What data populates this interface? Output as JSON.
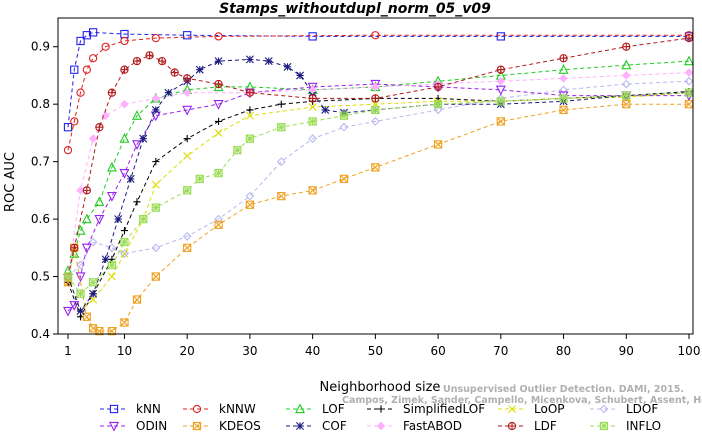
{
  "chart_data": {
    "type": "line",
    "title": "Stamps_withoutdupl_norm_05_v09",
    "xlabel": "Neighborhood size",
    "ylabel": "ROC AUC",
    "xlim": [
      1,
      100
    ],
    "ylim": [
      0.4,
      0.95
    ],
    "xticks": [
      1,
      10,
      20,
      30,
      40,
      50,
      60,
      70,
      80,
      90,
      100
    ],
    "yticks": [
      0.4,
      0.5,
      0.6,
      0.7,
      0.8,
      0.9
    ],
    "ytick_labels": [
      "0.4",
      "0.5",
      "0.6",
      "0.7",
      "0.8",
      "0.9"
    ],
    "legend_placement": "bottom",
    "watermark": [
      "Unsupervised Outlier Detection. DAMI, 2015.",
      "Campos, Zimek, Sander, Campello, Micenkova, Schubert, Assent, Houle"
    ],
    "series": [
      {
        "name": "kNN",
        "color": "#2222ee",
        "marker": "square",
        "points": [
          [
            1,
            0.76
          ],
          [
            2,
            0.86
          ],
          [
            3,
            0.91
          ],
          [
            4,
            0.92
          ],
          [
            5,
            0.925
          ],
          [
            10,
            0.922
          ],
          [
            20,
            0.92
          ],
          [
            40,
            0.918
          ],
          [
            70,
            0.918
          ],
          [
            100,
            0.918
          ]
        ]
      },
      {
        "name": "kNNW",
        "color": "#e02020",
        "marker": "circle",
        "points": [
          [
            1,
            0.72
          ],
          [
            2,
            0.77
          ],
          [
            3,
            0.82
          ],
          [
            4,
            0.86
          ],
          [
            5,
            0.88
          ],
          [
            7,
            0.9
          ],
          [
            10,
            0.91
          ],
          [
            15,
            0.915
          ],
          [
            25,
            0.918
          ],
          [
            50,
            0.92
          ],
          [
            100,
            0.92
          ]
        ]
      },
      {
        "name": "LOF",
        "color": "#22cc22",
        "marker": "triangle-up",
        "points": [
          [
            1,
            0.51
          ],
          [
            2,
            0.54
          ],
          [
            3,
            0.58
          ],
          [
            4,
            0.6
          ],
          [
            6,
            0.63
          ],
          [
            8,
            0.69
          ],
          [
            10,
            0.74
          ],
          [
            12,
            0.78
          ],
          [
            15,
            0.81
          ],
          [
            20,
            0.825
          ],
          [
            25,
            0.83
          ],
          [
            30,
            0.83
          ],
          [
            40,
            0.825
          ],
          [
            50,
            0.83
          ],
          [
            60,
            0.84
          ],
          [
            70,
            0.85
          ],
          [
            80,
            0.86
          ],
          [
            90,
            0.868
          ],
          [
            100,
            0.875
          ]
        ]
      },
      {
        "name": "SimplifiedLOF",
        "color": "#000000",
        "marker": "plus",
        "points": [
          [
            1,
            0.49
          ],
          [
            3,
            0.43
          ],
          [
            5,
            0.47
          ],
          [
            8,
            0.53
          ],
          [
            10,
            0.58
          ],
          [
            12,
            0.63
          ],
          [
            15,
            0.7
          ],
          [
            20,
            0.74
          ],
          [
            25,
            0.77
          ],
          [
            30,
            0.79
          ],
          [
            35,
            0.8
          ],
          [
            40,
            0.805
          ],
          [
            50,
            0.81
          ],
          [
            60,
            0.81
          ],
          [
            70,
            0.805
          ],
          [
            80,
            0.81
          ],
          [
            90,
            0.815
          ],
          [
            100,
            0.822
          ]
        ]
      },
      {
        "name": "LoOP",
        "color": "#dddd00",
        "marker": "x",
        "points": [
          [
            1,
            0.5
          ],
          [
            3,
            0.44
          ],
          [
            5,
            0.46
          ],
          [
            8,
            0.5
          ],
          [
            10,
            0.54
          ],
          [
            13,
            0.6
          ],
          [
            15,
            0.66
          ],
          [
            20,
            0.71
          ],
          [
            25,
            0.75
          ],
          [
            30,
            0.78
          ],
          [
            40,
            0.795
          ],
          [
            50,
            0.8
          ],
          [
            60,
            0.805
          ],
          [
            70,
            0.805
          ],
          [
            80,
            0.81
          ],
          [
            90,
            0.812
          ],
          [
            100,
            0.82
          ]
        ]
      },
      {
        "name": "LDOF",
        "color": "#b8b8f0",
        "marker": "diamond",
        "points": [
          [
            1,
            0.5
          ],
          [
            3,
            0.52
          ],
          [
            5,
            0.56
          ],
          [
            8,
            0.55
          ],
          [
            10,
            0.54
          ],
          [
            15,
            0.55
          ],
          [
            20,
            0.57
          ],
          [
            25,
            0.6
          ],
          [
            30,
            0.64
          ],
          [
            35,
            0.7
          ],
          [
            40,
            0.74
          ],
          [
            45,
            0.76
          ],
          [
            50,
            0.77
          ],
          [
            60,
            0.79
          ],
          [
            70,
            0.81
          ],
          [
            80,
            0.825
          ],
          [
            90,
            0.835
          ],
          [
            100,
            0.84
          ]
        ]
      },
      {
        "name": "ODIN",
        "color": "#9922ee",
        "marker": "triangle-down",
        "points": [
          [
            1,
            0.44
          ],
          [
            2,
            0.45
          ],
          [
            3,
            0.5
          ],
          [
            4,
            0.55
          ],
          [
            6,
            0.6
          ],
          [
            8,
            0.64
          ],
          [
            10,
            0.68
          ],
          [
            12,
            0.73
          ],
          [
            15,
            0.78
          ],
          [
            20,
            0.79
          ],
          [
            25,
            0.8
          ],
          [
            30,
            0.82
          ],
          [
            40,
            0.83
          ],
          [
            50,
            0.835
          ],
          [
            60,
            0.83
          ],
          [
            70,
            0.825
          ],
          [
            80,
            0.815
          ],
          [
            90,
            0.815
          ],
          [
            100,
            0.815
          ]
        ]
      },
      {
        "name": "KDEOS",
        "color": "#f0a020",
        "marker": "square-x",
        "points": [
          [
            1,
            0.49
          ],
          [
            2,
            0.55
          ],
          [
            4,
            0.43
          ],
          [
            5,
            0.41
          ],
          [
            6,
            0.405
          ],
          [
            8,
            0.405
          ],
          [
            10,
            0.42
          ],
          [
            12,
            0.46
          ],
          [
            15,
            0.5
          ],
          [
            20,
            0.55
          ],
          [
            25,
            0.59
          ],
          [
            30,
            0.625
          ],
          [
            35,
            0.64
          ],
          [
            40,
            0.65
          ],
          [
            45,
            0.67
          ],
          [
            50,
            0.69
          ],
          [
            60,
            0.73
          ],
          [
            70,
            0.77
          ],
          [
            80,
            0.79
          ],
          [
            90,
            0.8
          ],
          [
            100,
            0.8
          ]
        ]
      },
      {
        "name": "COF",
        "color": "#1a1a80",
        "marker": "asterisk",
        "points": [
          [
            1,
            0.5
          ],
          [
            3,
            0.44
          ],
          [
            5,
            0.47
          ],
          [
            7,
            0.53
          ],
          [
            9,
            0.6
          ],
          [
            11,
            0.67
          ],
          [
            13,
            0.74
          ],
          [
            15,
            0.79
          ],
          [
            17,
            0.82
          ],
          [
            20,
            0.84
          ],
          [
            22,
            0.86
          ],
          [
            25,
            0.875
          ],
          [
            30,
            0.878
          ],
          [
            33,
            0.875
          ],
          [
            36,
            0.865
          ],
          [
            38,
            0.85
          ],
          [
            40,
            0.82
          ],
          [
            42,
            0.79
          ],
          [
            45,
            0.785
          ],
          [
            50,
            0.79
          ],
          [
            60,
            0.8
          ],
          [
            70,
            0.8
          ],
          [
            80,
            0.805
          ],
          [
            90,
            0.815
          ],
          [
            100,
            0.82
          ]
        ]
      },
      {
        "name": "FastABOD",
        "color": "#ffb0ff",
        "marker": "diamond-filled",
        "points": [
          [
            1,
            0.5
          ],
          [
            3,
            0.65
          ],
          [
            5,
            0.74
          ],
          [
            7,
            0.78
          ],
          [
            10,
            0.8
          ],
          [
            15,
            0.81
          ],
          [
            20,
            0.82
          ],
          [
            30,
            0.82
          ],
          [
            40,
            0.825
          ],
          [
            50,
            0.83
          ],
          [
            60,
            0.835
          ],
          [
            70,
            0.84
          ],
          [
            80,
            0.845
          ],
          [
            90,
            0.85
          ],
          [
            100,
            0.855
          ]
        ]
      },
      {
        "name": "LDF",
        "color": "#b01a1a",
        "marker": "circle-plus",
        "points": [
          [
            1,
            0.5
          ],
          [
            2,
            0.55
          ],
          [
            4,
            0.65
          ],
          [
            6,
            0.76
          ],
          [
            8,
            0.82
          ],
          [
            10,
            0.86
          ],
          [
            12,
            0.875
          ],
          [
            14,
            0.885
          ],
          [
            16,
            0.875
          ],
          [
            18,
            0.855
          ],
          [
            20,
            0.845
          ],
          [
            25,
            0.835
          ],
          [
            30,
            0.82
          ],
          [
            40,
            0.81
          ],
          [
            50,
            0.81
          ],
          [
            60,
            0.83
          ],
          [
            70,
            0.86
          ],
          [
            80,
            0.88
          ],
          [
            90,
            0.9
          ],
          [
            100,
            0.915
          ]
        ]
      },
      {
        "name": "INFLO",
        "color": "#99dd55",
        "marker": "square-star",
        "points": [
          [
            1,
            0.5
          ],
          [
            3,
            0.47
          ],
          [
            5,
            0.49
          ],
          [
            8,
            0.52
          ],
          [
            10,
            0.56
          ],
          [
            13,
            0.6
          ],
          [
            15,
            0.62
          ],
          [
            20,
            0.65
          ],
          [
            22,
            0.67
          ],
          [
            25,
            0.68
          ],
          [
            28,
            0.72
          ],
          [
            30,
            0.74
          ],
          [
            35,
            0.76
          ],
          [
            40,
            0.77
          ],
          [
            45,
            0.78
          ],
          [
            50,
            0.79
          ],
          [
            60,
            0.8
          ],
          [
            70,
            0.805
          ],
          [
            80,
            0.81
          ],
          [
            90,
            0.815
          ],
          [
            100,
            0.82
          ]
        ]
      }
    ]
  }
}
